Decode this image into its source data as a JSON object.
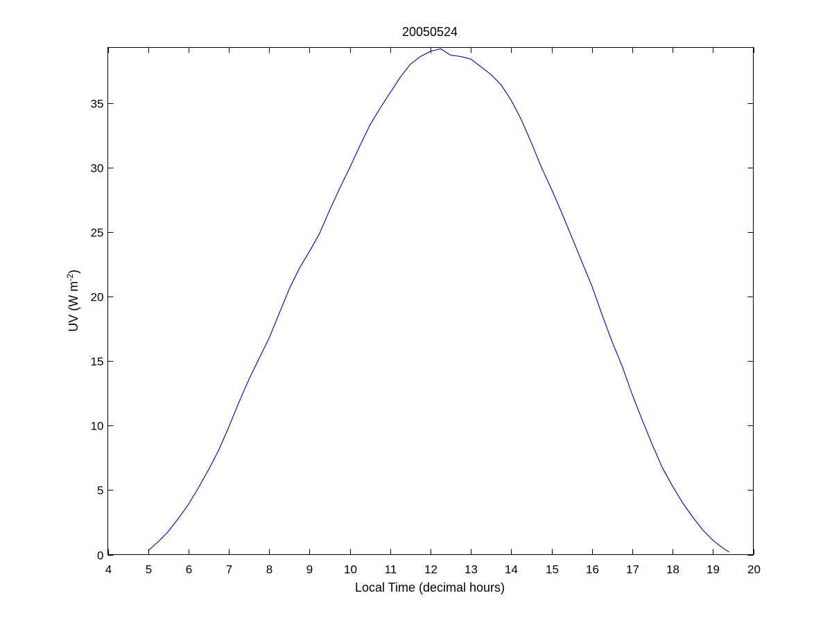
{
  "chart_data": {
    "type": "line",
    "title": "20050524",
    "xlabel": "Local Time (decimal hours)",
    "ylabel_main": "UV (W m",
    "ylabel_sup": "-2",
    "ylabel_close": ")",
    "xlim": [
      4,
      20
    ],
    "ylim": [
      0,
      39.3
    ],
    "xticks": [
      4,
      5,
      6,
      7,
      8,
      9,
      10,
      11,
      12,
      13,
      14,
      15,
      16,
      17,
      18,
      19,
      20
    ],
    "yticks": [
      0,
      5,
      10,
      15,
      20,
      25,
      30,
      35
    ],
    "grid": false,
    "series": [
      {
        "color": "#00008b",
        "x": [
          5.0,
          5.25,
          5.5,
          5.75,
          6.0,
          6.25,
          6.5,
          6.75,
          7.0,
          7.25,
          7.5,
          7.75,
          8.0,
          8.25,
          8.5,
          8.75,
          9.0,
          9.25,
          9.5,
          9.75,
          10.0,
          10.25,
          10.5,
          10.75,
          11.0,
          11.25,
          11.5,
          11.75,
          12.0,
          12.25,
          12.5,
          12.75,
          13.0,
          13.25,
          13.5,
          13.75,
          14.0,
          14.25,
          14.5,
          14.75,
          15.0,
          15.25,
          15.5,
          15.75,
          16.0,
          16.25,
          16.5,
          16.75,
          17.0,
          17.25,
          17.5,
          17.75,
          18.0,
          18.25,
          18.5,
          18.75,
          19.0,
          19.25,
          19.4
        ],
        "y": [
          0.3,
          1.0,
          1.8,
          2.8,
          3.9,
          5.2,
          6.6,
          8.1,
          9.9,
          11.8,
          13.6,
          15.2,
          16.8,
          18.7,
          20.6,
          22.2,
          23.5,
          24.9,
          26.7,
          28.4,
          30.0,
          31.7,
          33.3,
          34.6,
          35.8,
          37.0,
          38.0,
          38.6,
          39.0,
          39.2,
          38.7,
          38.6,
          38.4,
          37.8,
          37.2,
          36.4,
          35.2,
          33.7,
          31.9,
          30.0,
          28.3,
          26.5,
          24.6,
          22.7,
          20.8,
          18.6,
          16.5,
          14.6,
          12.4,
          10.4,
          8.5,
          6.7,
          5.3,
          4.0,
          2.9,
          1.9,
          1.1,
          0.5,
          0.2
        ]
      }
    ]
  }
}
